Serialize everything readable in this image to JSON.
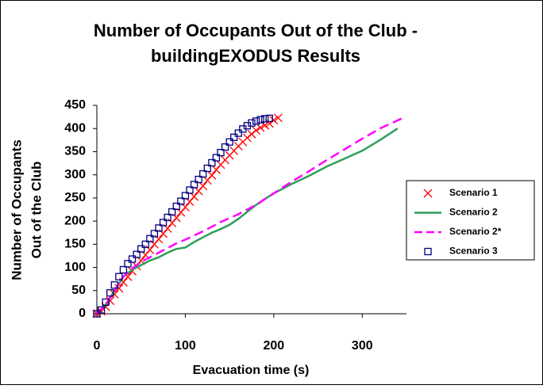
{
  "chart_data": {
    "type": "line",
    "title": [
      "Number of Occupants Out of the Club -",
      "buildingEXODUS Results"
    ],
    "y_label": [
      "Number of Occupants",
      "Out of the Club"
    ],
    "x_label": "Evacuation time (s)",
    "xlim": [
      0,
      350
    ],
    "xticks": [
      0,
      100,
      200,
      300
    ],
    "ylim": [
      0,
      450
    ],
    "yticks": [
      0,
      50,
      100,
      150,
      200,
      250,
      300,
      350,
      400,
      450
    ],
    "legend": "right",
    "series": [
      {
        "name": "Scenario 1",
        "color": "#ff0000",
        "marker": "x",
        "x": [
          0,
          5,
          10,
          15,
          20,
          25,
          30,
          35,
          40,
          45,
          50,
          55,
          60,
          65,
          70,
          75,
          80,
          85,
          90,
          95,
          100,
          105,
          110,
          115,
          120,
          125,
          130,
          135,
          140,
          145,
          150,
          155,
          160,
          165,
          170,
          175,
          180,
          185,
          190,
          195,
          200,
          205
        ],
        "values": [
          0,
          5,
          15,
          28,
          42,
          55,
          68,
          80,
          92,
          103,
          115,
          127,
          138,
          150,
          161,
          173,
          184,
          196,
          207,
          219,
          230,
          242,
          253,
          265,
          276,
          288,
          299,
          311,
          322,
          332,
          342,
          352,
          362,
          371,
          380,
          388,
          396,
          402,
          407,
          411,
          418,
          423
        ]
      },
      {
        "name": "Scenario 2",
        "color": "#2e9e5b",
        "marker": "none",
        "dash": false,
        "x": [
          0,
          10,
          20,
          30,
          40,
          50,
          60,
          70,
          80,
          90,
          100,
          110,
          120,
          130,
          140,
          150,
          160,
          170,
          180,
          190,
          200,
          220,
          240,
          260,
          280,
          300,
          320,
          340
        ],
        "values": [
          0,
          20,
          50,
          80,
          95,
          105,
          115,
          122,
          132,
          140,
          143,
          155,
          165,
          175,
          183,
          192,
          205,
          220,
          235,
          248,
          260,
          280,
          298,
          318,
          335,
          352,
          375,
          400
        ]
      },
      {
        "name": "Scenario 2*",
        "color": "#ff00ff",
        "marker": "none",
        "dash": true,
        "x": [
          0,
          10,
          20,
          30,
          40,
          50,
          60,
          70,
          80,
          90,
          100,
          120,
          140,
          160,
          180,
          200,
          220,
          240,
          260,
          280,
          300,
          320,
          345
        ],
        "values": [
          0,
          20,
          50,
          80,
          98,
          112,
          122,
          132,
          142,
          152,
          160,
          178,
          198,
          215,
          235,
          260,
          285,
          308,
          332,
          355,
          378,
          400,
          422
        ]
      },
      {
        "name": "Scenario 3",
        "color": "#000080",
        "marker": "square",
        "x": [
          0,
          5,
          10,
          15,
          20,
          25,
          30,
          35,
          40,
          45,
          50,
          55,
          60,
          65,
          70,
          75,
          80,
          85,
          90,
          95,
          100,
          105,
          110,
          115,
          120,
          125,
          130,
          135,
          140,
          145,
          150,
          155,
          160,
          165,
          170,
          175,
          180,
          185,
          190,
          195
        ],
        "values": [
          0,
          8,
          25,
          45,
          62,
          80,
          95,
          108,
          118,
          128,
          140,
          150,
          162,
          173,
          185,
          197,
          208,
          220,
          232,
          243,
          255,
          267,
          279,
          290,
          302,
          314,
          326,
          337,
          348,
          360,
          371,
          381,
          390,
          399,
          406,
          412,
          416,
          419,
          421,
          422
        ]
      }
    ]
  }
}
